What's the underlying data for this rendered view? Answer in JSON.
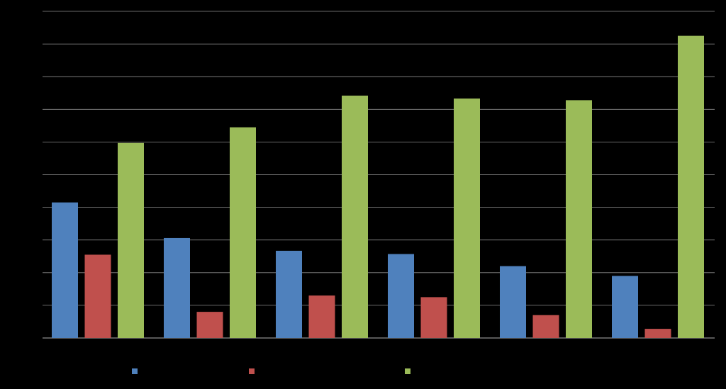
{
  "colors": {
    "background": "#000000",
    "grid": "#8c8c8c",
    "series": [
      "#4f81bd",
      "#c0504d",
      "#9bbb59"
    ]
  },
  "chart_data": {
    "type": "bar",
    "title": "",
    "xlabel": "",
    "ylabel": "",
    "categories": [
      "",
      "",
      "",
      "",
      "",
      ""
    ],
    "ylim": [
      0,
      10
    ],
    "grid": true,
    "legend_position": "bottom",
    "series": [
      {
        "values": [
          4.15,
          3.06,
          2.67,
          2.57,
          2.2,
          1.9
        ]
      },
      {
        "values": [
          2.55,
          0.8,
          1.3,
          1.25,
          0.7,
          0.28
        ]
      },
      {
        "values": [
          5.97,
          6.45,
          7.42,
          7.33,
          7.28,
          9.25
        ]
      }
    ]
  }
}
